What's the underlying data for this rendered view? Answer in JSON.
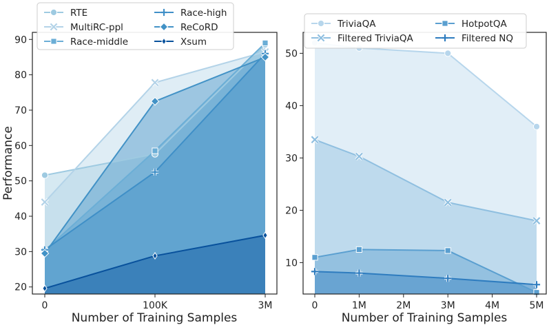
{
  "chart_data": [
    {
      "type": "area",
      "xlabel": "Number of Training Samples",
      "ylabel": "Performance",
      "categories": [
        "0",
        "100K",
        "3M"
      ],
      "ylim": [
        18,
        92
      ],
      "yticks": [
        20,
        30,
        40,
        50,
        60,
        70,
        80,
        90
      ],
      "grid": false,
      "legend_position": "top",
      "series": [
        {
          "name": "RTE",
          "marker": "circle",
          "color": "#9ecae1",
          "values": [
            51.6,
            57.6,
            88.5
          ]
        },
        {
          "name": "MultiRC-ppl",
          "marker": "x",
          "color": "#b3d3e8",
          "values": [
            44.0,
            77.8,
            86.5
          ]
        },
        {
          "name": "Race-middle",
          "marker": "square",
          "color": "#6baed6",
          "values": [
            30.3,
            58.5,
            89.0
          ]
        },
        {
          "name": "Race-high",
          "marker": "plus",
          "color": "#3f8fc7",
          "values": [
            30.5,
            52.5,
            86.0
          ]
        },
        {
          "name": "ReCoRD",
          "marker": "diamond",
          "color": "#4292c6",
          "values": [
            29.5,
            72.5,
            85.0
          ]
        },
        {
          "name": "Xsum",
          "marker": "thin_diamond",
          "color": "#08519c",
          "values": [
            19.6,
            28.8,
            34.6
          ]
        }
      ]
    },
    {
      "type": "area",
      "xlabel": "Number of Training Samples",
      "ylabel": "",
      "x_ticks": [
        "0",
        "1M",
        "2M",
        "3M",
        "4M",
        "5M"
      ],
      "x_values": [
        0,
        1,
        3,
        5
      ],
      "ylim": [
        4,
        54
      ],
      "yticks": [
        10,
        20,
        30,
        40,
        50
      ],
      "grid": false,
      "legend_position": "top",
      "series": [
        {
          "name": "TriviaQA",
          "marker": "circle",
          "color": "#b7d6ec",
          "values": [
            52.0,
            51.0,
            50.0,
            36.0
          ]
        },
        {
          "name": "Filtered TriviaQA",
          "marker": "x",
          "color": "#8fbfe0",
          "values": [
            33.5,
            30.3,
            21.5,
            18.0
          ]
        },
        {
          "name": "HotpotQA",
          "marker": "square",
          "color": "#5a9fd0",
          "values": [
            11.0,
            12.5,
            12.3,
            4.3
          ]
        },
        {
          "name": "Filtered NQ",
          "marker": "plus",
          "color": "#2e7cbf",
          "values": [
            8.3,
            8.0,
            7.0,
            5.8
          ]
        }
      ]
    }
  ]
}
